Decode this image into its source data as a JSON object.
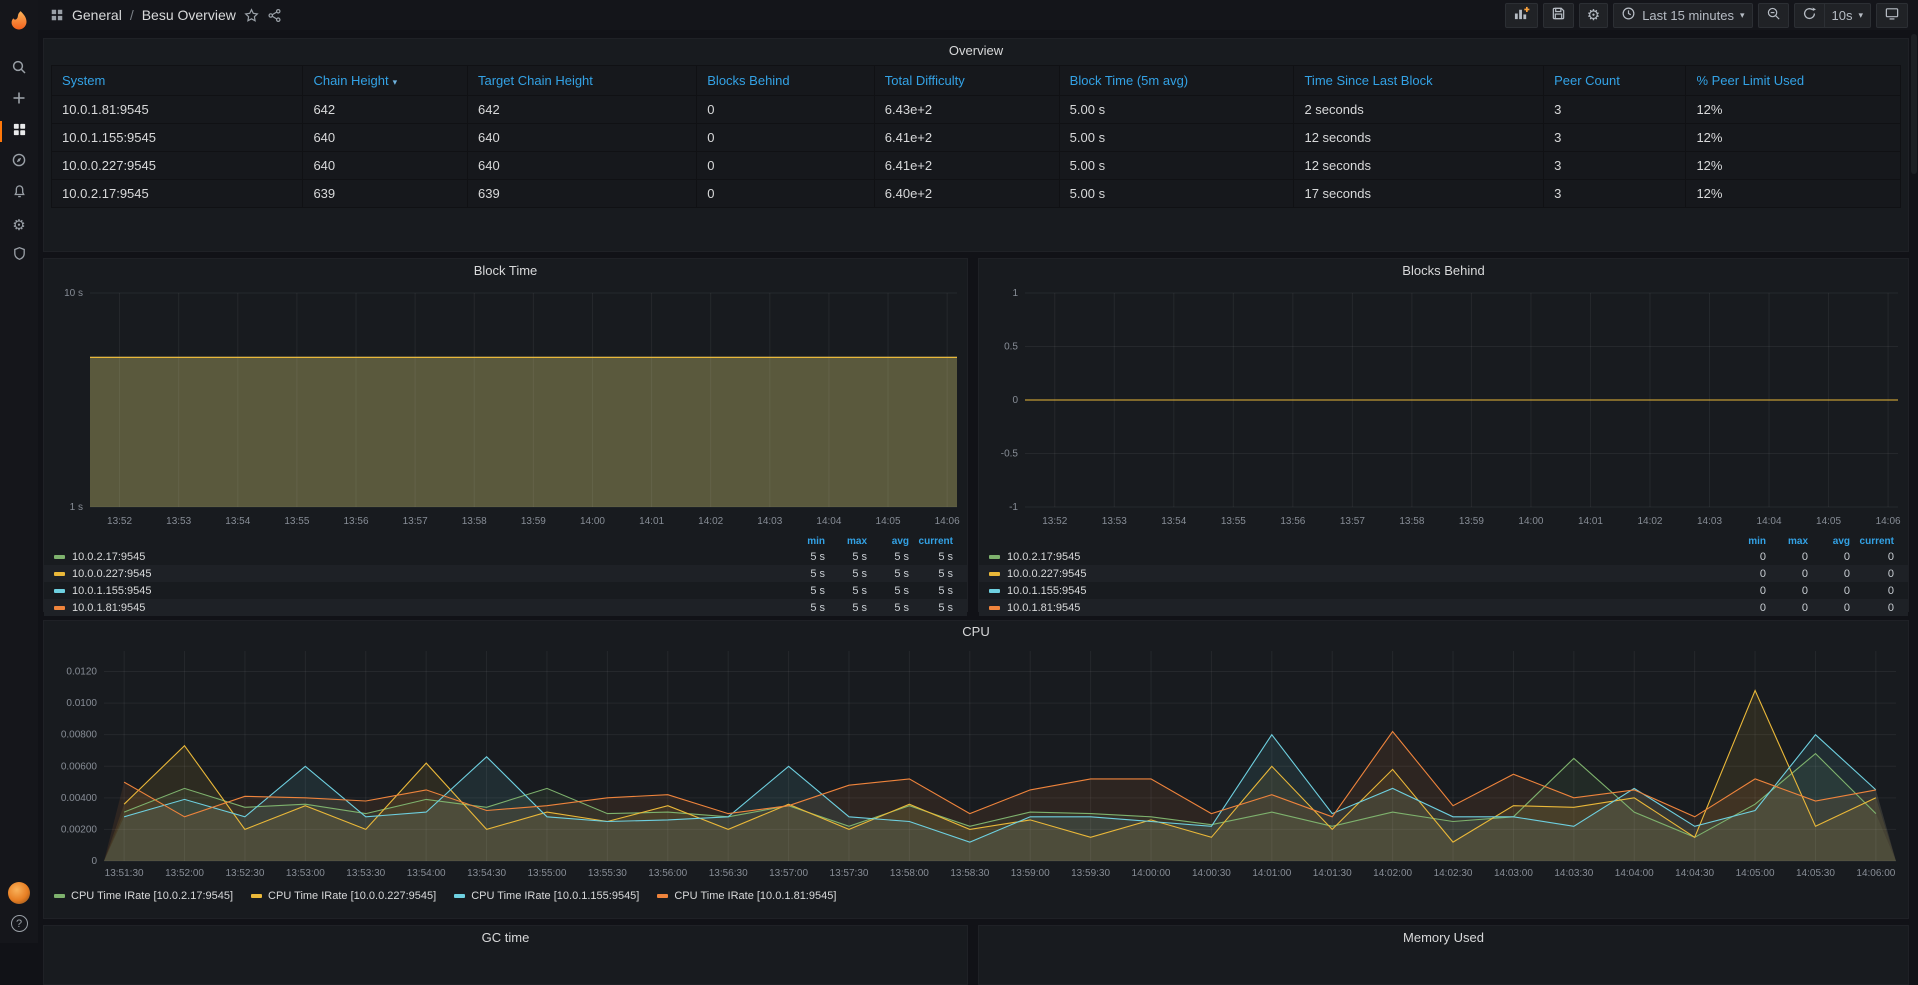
{
  "breadcrumb": {
    "section_icon": "apps-icon",
    "folder": "General",
    "separator": "/",
    "title": "Besu Overview"
  },
  "toolbar": {
    "time_range": "Last 15 minutes",
    "refresh_interval": "10s",
    "icons": [
      "add-panel-icon",
      "save-dashboard-icon",
      "dashboard-settings-icon",
      "clock-icon",
      "zoom-out-icon",
      "refresh-icon",
      "tv-mode-icon"
    ]
  },
  "sidebar": {
    "logo": "grafana-logo",
    "items": [
      "search-icon",
      "plus-icon",
      "dashboards-icon",
      "explore-icon",
      "alerting-icon",
      "configuration-icon",
      "server-admin-icon"
    ],
    "active_item": "dashboards-icon",
    "bottom": [
      "user-avatar",
      "help-icon"
    ]
  },
  "overview": {
    "title": "Overview",
    "columns": [
      {
        "label": "System"
      },
      {
        "label": "Chain Height",
        "sort": true
      },
      {
        "label": "Target Chain Height"
      },
      {
        "label": "Blocks Behind"
      },
      {
        "label": "Total Difficulty"
      },
      {
        "label": "Block Time (5m avg)"
      },
      {
        "label": "Time Since Last Block"
      },
      {
        "label": "Peer Count"
      },
      {
        "label": "% Peer Limit Used"
      }
    ],
    "rows": [
      [
        "10.0.1.81:9545",
        "642",
        "642",
        "0",
        "6.43e+2",
        "5.00 s",
        "2 seconds",
        "3",
        "12%"
      ],
      [
        "10.0.1.155:9545",
        "640",
        "640",
        "0",
        "6.41e+2",
        "5.00 s",
        "12 seconds",
        "3",
        "12%"
      ],
      [
        "10.0.0.227:9545",
        "640",
        "640",
        "0",
        "6.41e+2",
        "5.00 s",
        "12 seconds",
        "3",
        "12%"
      ],
      [
        "10.0.2.17:9545",
        "639",
        "639",
        "0",
        "6.40e+2",
        "5.00 s",
        "17 seconds",
        "3",
        "12%"
      ]
    ],
    "green_cols": [
      3,
      6
    ],
    "red_cols": [
      8
    ]
  },
  "legend_stats": [
    "min",
    "max",
    "avg",
    "current"
  ],
  "partial_panels": {
    "gc_title": "GC time",
    "memory_title": "Memory Used"
  },
  "colors": {
    "blue": "#33A2E5",
    "green_text": "#73BF69",
    "red_text": "#E02F44",
    "accent_orange": "#FF780A",
    "panel_bg": "#181B1F",
    "page_bg": "#111217",
    "series_green": "#7EB26D",
    "series_yellow": "#EAB839",
    "series_blue": "#6ED0E0",
    "series_orange": "#EF843C"
  },
  "chart_data": [
    {
      "type": "area",
      "title": "Block Time",
      "yscale": "log",
      "ylim": [
        1,
        10
      ],
      "yticks": [
        {
          "v": 10,
          "label": "10 s"
        },
        {
          "v": 1,
          "label": "1 s"
        }
      ],
      "x_ticks": [
        "13:52",
        "13:53",
        "13:54",
        "13:55",
        "13:56",
        "13:57",
        "13:58",
        "13:59",
        "14:00",
        "14:01",
        "14:02",
        "14:03",
        "14:04",
        "14:05",
        "14:06"
      ],
      "fill_opacity": 0.13,
      "draw_order": [
        0,
        2,
        3,
        1
      ],
      "legend": "table",
      "series": [
        {
          "name": "10.0.2.17:9545",
          "color": "#7EB26D",
          "value": 5,
          "stats": {
            "min": "5 s",
            "max": "5 s",
            "avg": "5 s",
            "current": "5 s"
          }
        },
        {
          "name": "10.0.0.227:9545",
          "color": "#EAB839",
          "value": 5,
          "stats": {
            "min": "5 s",
            "max": "5 s",
            "avg": "5 s",
            "current": "5 s"
          }
        },
        {
          "name": "10.0.1.155:9545",
          "color": "#6ED0E0",
          "value": 5,
          "stats": {
            "min": "5 s",
            "max": "5 s",
            "avg": "5 s",
            "current": "5 s"
          }
        },
        {
          "name": "10.0.1.81:9545",
          "color": "#EF843C",
          "value": 5,
          "stats": {
            "min": "5 s",
            "max": "5 s",
            "avg": "5 s",
            "current": "5 s"
          }
        }
      ]
    },
    {
      "type": "line",
      "title": "Blocks Behind",
      "yscale": "linear",
      "ylim": [
        -1,
        1
      ],
      "yticks": [
        {
          "v": 1,
          "label": "1"
        },
        {
          "v": 0.5,
          "label": "0.5"
        },
        {
          "v": 0,
          "label": "0"
        },
        {
          "v": -0.5,
          "label": "-0.5"
        },
        {
          "v": -1,
          "label": "-1"
        }
      ],
      "x_ticks": [
        "13:52",
        "13:53",
        "13:54",
        "13:55",
        "13:56",
        "13:57",
        "13:58",
        "13:59",
        "14:00",
        "14:01",
        "14:02",
        "14:03",
        "14:04",
        "14:05",
        "14:06"
      ],
      "fill_opacity": 0,
      "draw_order": [
        0,
        2,
        3,
        1
      ],
      "legend": "table",
      "series": [
        {
          "name": "10.0.2.17:9545",
          "color": "#7EB26D",
          "value": 0,
          "stats": {
            "min": "0",
            "max": "0",
            "avg": "0",
            "current": "0"
          }
        },
        {
          "name": "10.0.0.227:9545",
          "color": "#EAB839",
          "value": 0,
          "stats": {
            "min": "0",
            "max": "0",
            "avg": "0",
            "current": "0"
          }
        },
        {
          "name": "10.0.1.155:9545",
          "color": "#6ED0E0",
          "value": 0,
          "stats": {
            "min": "0",
            "max": "0",
            "avg": "0",
            "current": "0"
          }
        },
        {
          "name": "10.0.1.81:9545",
          "color": "#EF843C",
          "value": 0,
          "stats": {
            "min": "0",
            "max": "0",
            "avg": "0",
            "current": "0"
          }
        }
      ]
    },
    {
      "type": "area",
      "title": "CPU",
      "yscale": "linear",
      "ylim": [
        0,
        0.0133
      ],
      "yticks": [
        {
          "v": 0.012,
          "label": "0.0120"
        },
        {
          "v": 0.01,
          "label": "0.0100"
        },
        {
          "v": 0.008,
          "label": "0.00800"
        },
        {
          "v": 0.006,
          "label": "0.00600"
        },
        {
          "v": 0.004,
          "label": "0.00400"
        },
        {
          "v": 0.002,
          "label": "0.00200"
        },
        {
          "v": 0,
          "label": "0"
        }
      ],
      "x_ticks": [
        "13:51:30",
        "13:52:00",
        "13:52:30",
        "13:53:00",
        "13:53:30",
        "13:54:00",
        "13:54:30",
        "13:55:00",
        "13:55:30",
        "13:56:00",
        "13:56:30",
        "13:57:00",
        "13:57:30",
        "13:58:00",
        "13:58:30",
        "13:59:00",
        "13:59:30",
        "14:00:00",
        "14:00:30",
        "14:01:00",
        "14:01:30",
        "14:02:00",
        "14:02:30",
        "14:03:00",
        "14:03:30",
        "14:04:00",
        "14:04:30",
        "14:05:00",
        "14:05:30",
        "14:06:00"
      ],
      "fill_opacity": 0.1,
      "legend": "inline",
      "series": [
        {
          "name": "CPU Time IRate [10.0.2.17:9545]",
          "color": "#7EB26D",
          "values": [
            0.0031,
            0.0046,
            0.0034,
            0.0036,
            0.003,
            0.0039,
            0.0034,
            0.0046,
            0.003,
            0.0031,
            0.0028,
            0.0035,
            0.0022,
            0.0035,
            0.0022,
            0.0031,
            0.003,
            0.0028,
            0.0023,
            0.0031,
            0.0022,
            0.0031,
            0.0025,
            0.0028,
            0.0065,
            0.0031,
            0.0015,
            0.0036,
            0.0068,
            0.003
          ]
        },
        {
          "name": "CPU Time IRate [10.0.0.227:9545]",
          "color": "#EAB839",
          "values": [
            0.0036,
            0.0073,
            0.002,
            0.0035,
            0.002,
            0.0062,
            0.002,
            0.0031,
            0.0025,
            0.0035,
            0.002,
            0.0036,
            0.002,
            0.0036,
            0.002,
            0.0026,
            0.0015,
            0.0026,
            0.0015,
            0.006,
            0.002,
            0.0058,
            0.0012,
            0.0035,
            0.0034,
            0.004,
            0.0015,
            0.0108,
            0.0022,
            0.004
          ]
        },
        {
          "name": "CPU Time IRate [10.0.1.155:9545]",
          "color": "#6ED0E0",
          "values": [
            0.0028,
            0.0039,
            0.0028,
            0.006,
            0.0028,
            0.0031,
            0.0066,
            0.0028,
            0.0025,
            0.0026,
            0.0028,
            0.006,
            0.0028,
            0.0025,
            0.0012,
            0.0028,
            0.0028,
            0.0025,
            0.0022,
            0.008,
            0.003,
            0.0046,
            0.0028,
            0.0028,
            0.0022,
            0.0046,
            0.0022,
            0.0032,
            0.008,
            0.0045
          ]
        },
        {
          "name": "CPU Time IRate [10.0.1.81:9545]",
          "color": "#EF843C",
          "values": [
            0.005,
            0.0028,
            0.0041,
            0.004,
            0.0038,
            0.0045,
            0.0032,
            0.0035,
            0.004,
            0.0042,
            0.003,
            0.0035,
            0.0048,
            0.0052,
            0.003,
            0.0045,
            0.0052,
            0.0052,
            0.003,
            0.0042,
            0.0028,
            0.0082,
            0.0035,
            0.0055,
            0.004,
            0.0045,
            0.0028,
            0.0052,
            0.0038,
            0.0045
          ]
        }
      ]
    }
  ]
}
